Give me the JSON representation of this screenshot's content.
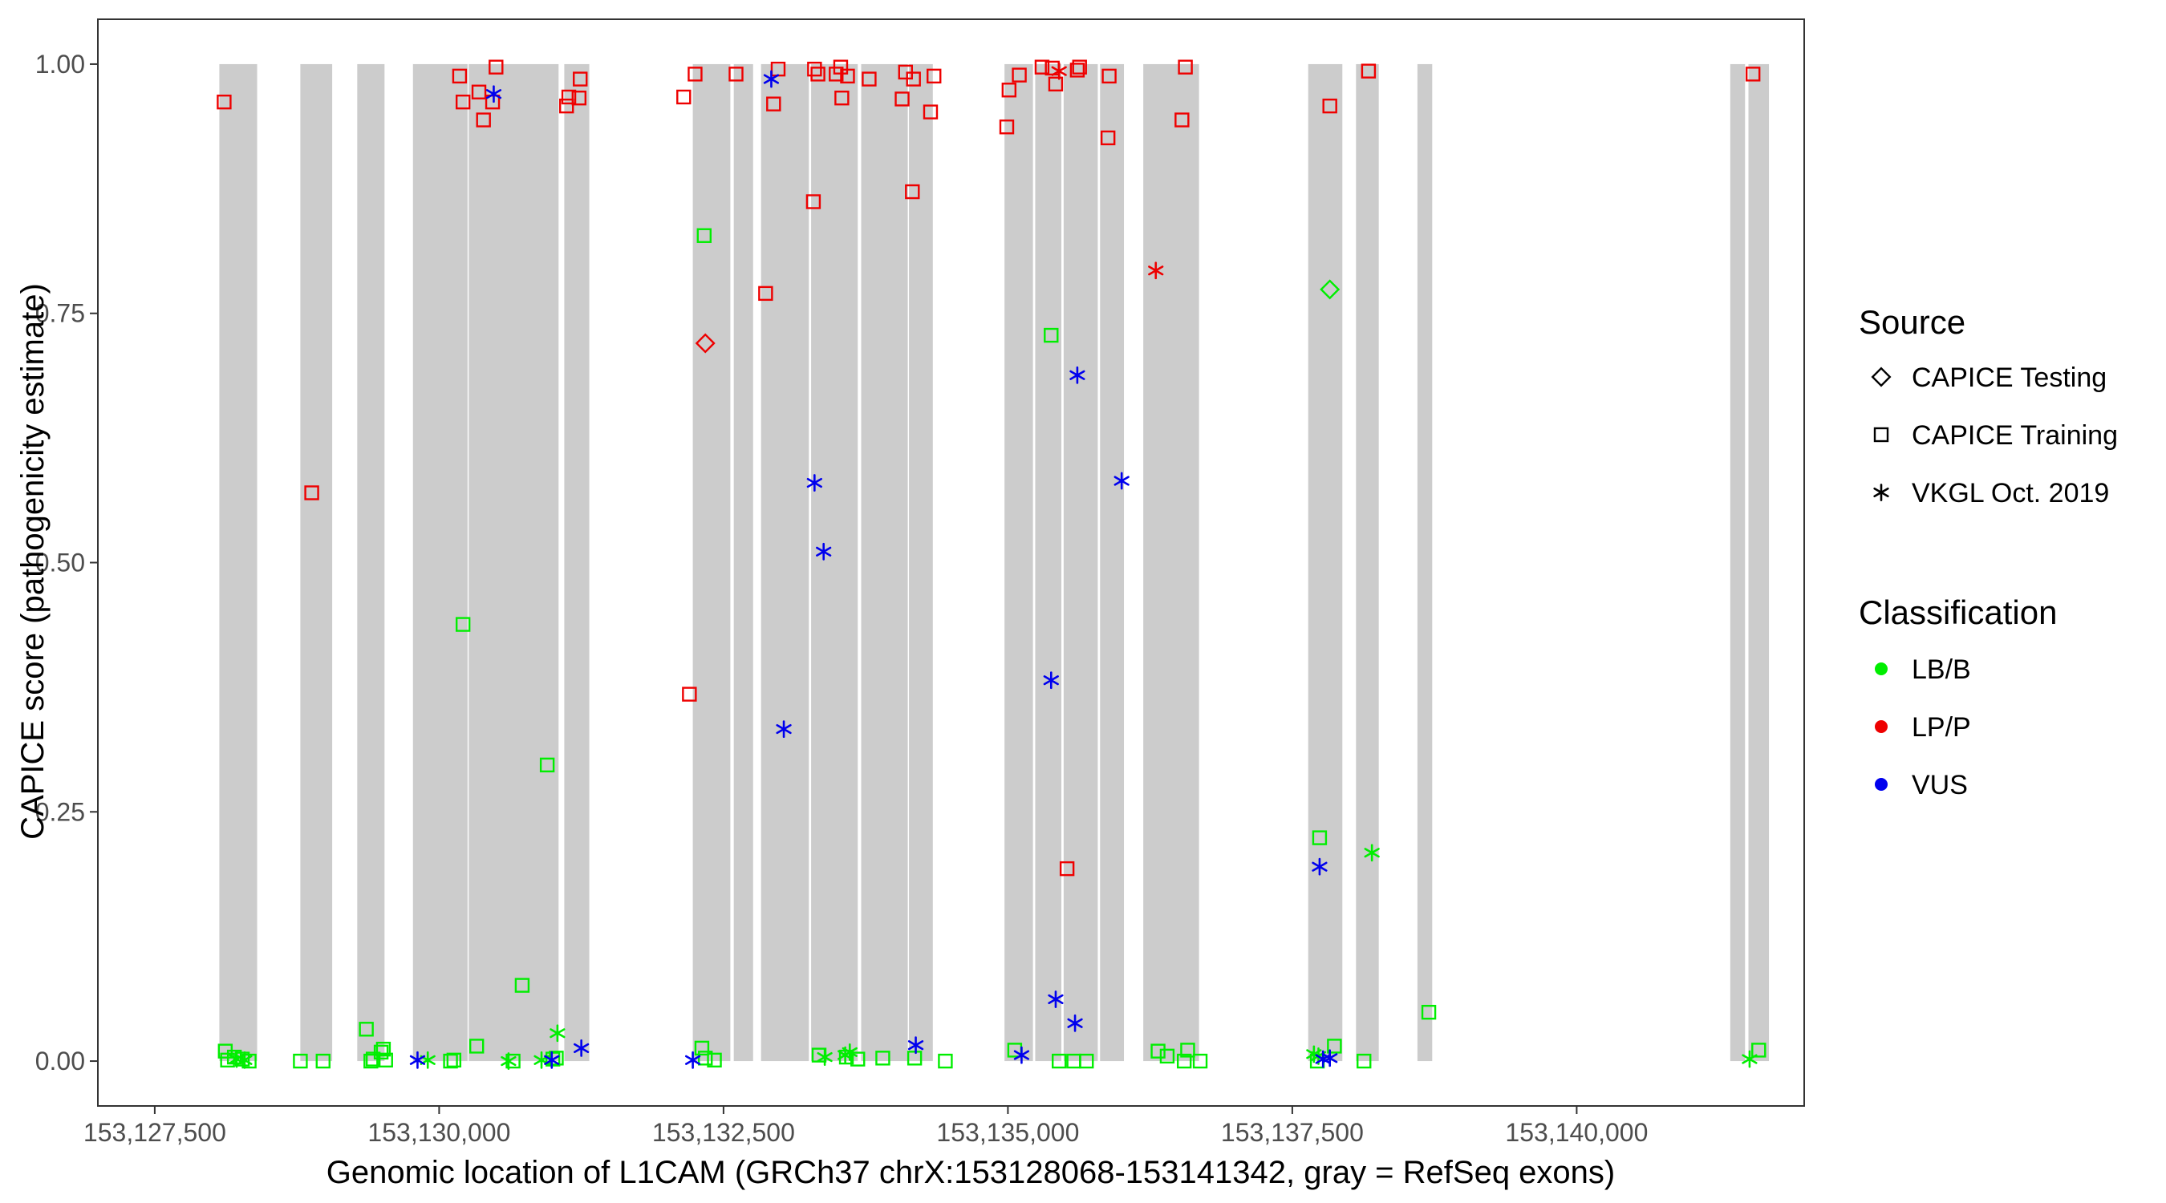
{
  "chart_data": {
    "type": "scatter",
    "xlabel": "Genomic location of L1CAM (GRCh37 chrX:153128068-153141342, gray = RefSeq exons)",
    "ylabel": "CAPICE score (pathogenicity estimate)",
    "xlim": [
      127000,
      142000
    ],
    "ylim": [
      -0.045,
      1.045
    ],
    "x_ticks": [
      127500,
      130000,
      132500,
      135000,
      137500,
      140000
    ],
    "x_tick_labels": [
      "153,127,500",
      "153,130,000",
      "153,132,500",
      "153,135,000",
      "153,137,500",
      "153,140,000"
    ],
    "y_ticks": [
      0,
      0.25,
      0.5,
      0.75,
      1
    ],
    "y_tick_labels": [
      "0.00",
      "0.25",
      "0.50",
      "0.75",
      "1.00"
    ],
    "x_offset_note_value": 153000000,
    "exons": [
      [
        128068,
        128400
      ],
      [
        128780,
        129060
      ],
      [
        129280,
        129520
      ],
      [
        129770,
        130250
      ],
      [
        130260,
        131050
      ],
      [
        131100,
        131320
      ],
      [
        132230,
        132560
      ],
      [
        132590,
        132760
      ],
      [
        132830,
        133250
      ],
      [
        133270,
        133680
      ],
      [
        133710,
        134120
      ],
      [
        134130,
        134340
      ],
      [
        134970,
        135220
      ],
      [
        135240,
        135470
      ],
      [
        135490,
        135790
      ],
      [
        135810,
        136020
      ],
      [
        136190,
        136680
      ],
      [
        137640,
        137940
      ],
      [
        138060,
        138260
      ],
      [
        138600,
        138730
      ],
      [
        141350,
        141480
      ],
      [
        141510,
        141690
      ]
    ],
    "legend": {
      "source_title": "Source",
      "source_items": [
        {
          "label": "CAPICE Testing",
          "shape": "diamond"
        },
        {
          "label": "CAPICE Training",
          "shape": "square"
        },
        {
          "label": "VKGL Oct. 2019",
          "shape": "asterisk"
        }
      ],
      "class_title": "Classification",
      "class_items": [
        {
          "label": "LB/B",
          "color": "#00ee00"
        },
        {
          "label": "LP/P",
          "color": "#ee0000"
        },
        {
          "label": "VUS",
          "color": "#0000ee"
        }
      ]
    },
    "colors": {
      "LB/B": "#00ee00",
      "LP/P": "#ee0000",
      "VUS": "#0000ee",
      "exon": "#cccccc"
    },
    "series": [
      {
        "source": "CAPICE Training",
        "classification": "LP/P",
        "points": [
          [
            128110,
            0.962
          ],
          [
            128880,
            0.57
          ],
          [
            130180,
            0.988
          ],
          [
            130210,
            0.962
          ],
          [
            130350,
            0.972
          ],
          [
            130390,
            0.944
          ],
          [
            130470,
            0.962
          ],
          [
            130500,
            0.997
          ],
          [
            131120,
            0.958
          ],
          [
            131140,
            0.967
          ],
          [
            131240,
            0.985
          ],
          [
            131230,
            0.966
          ],
          [
            132150,
            0.967
          ],
          [
            132200,
            0.368
          ],
          [
            132250,
            0.99
          ],
          [
            132610,
            0.99
          ],
          [
            132870,
            0.77
          ],
          [
            132940,
            0.96
          ],
          [
            132980,
            0.995
          ],
          [
            133290,
            0.862
          ],
          [
            133300,
            0.995
          ],
          [
            133330,
            0.99
          ],
          [
            133490,
            0.99
          ],
          [
            133530,
            0.997
          ],
          [
            133540,
            0.966
          ],
          [
            133590,
            0.988
          ],
          [
            133780,
            0.985
          ],
          [
            134070,
            0.965
          ],
          [
            134100,
            0.992
          ],
          [
            134160,
            0.872
          ],
          [
            134170,
            0.985
          ],
          [
            134320,
            0.952
          ],
          [
            134350,
            0.988
          ],
          [
            134990,
            0.937
          ],
          [
            135010,
            0.974
          ],
          [
            135100,
            0.989
          ],
          [
            135300,
            0.997
          ],
          [
            135390,
            0.996
          ],
          [
            135420,
            0.98
          ],
          [
            135520,
            0.193
          ],
          [
            135610,
            0.994
          ],
          [
            135630,
            0.997
          ],
          [
            135880,
            0.926
          ],
          [
            135890,
            0.988
          ],
          [
            136530,
            0.944
          ],
          [
            136560,
            0.997
          ],
          [
            137830,
            0.958
          ],
          [
            138170,
            0.993
          ],
          [
            141550,
            0.99
          ]
        ]
      },
      {
        "source": "CAPICE Training",
        "classification": "LB/B",
        "points": [
          [
            128120,
            0.01
          ],
          [
            128140,
            0.001
          ],
          [
            128200,
            0.004
          ],
          [
            128270,
            0.002
          ],
          [
            128330,
            0.0
          ],
          [
            128780,
            0.0
          ],
          [
            128980,
            0.0
          ],
          [
            129360,
            0.032
          ],
          [
            129400,
            0.0
          ],
          [
            129420,
            0.002
          ],
          [
            129490,
            0.009
          ],
          [
            129510,
            0.012
          ],
          [
            129530,
            0.001
          ],
          [
            130100,
            0.0
          ],
          [
            130130,
            0.001
          ],
          [
            130210,
            0.438
          ],
          [
            130330,
            0.015
          ],
          [
            130650,
            0.0
          ],
          [
            130730,
            0.076
          ],
          [
            130950,
            0.297
          ],
          [
            131000,
            0.002
          ],
          [
            131030,
            0.003
          ],
          [
            132330,
            0.828
          ],
          [
            132310,
            0.013
          ],
          [
            132340,
            0.003
          ],
          [
            132420,
            0.001
          ],
          [
            133340,
            0.006
          ],
          [
            133580,
            0.004
          ],
          [
            133680,
            0.002
          ],
          [
            133900,
            0.003
          ],
          [
            134180,
            0.003
          ],
          [
            134450,
            0.0
          ],
          [
            135060,
            0.011
          ],
          [
            135380,
            0.728
          ],
          [
            135450,
            0.0
          ],
          [
            135580,
            0.0
          ],
          [
            135690,
            0.0
          ],
          [
            136320,
            0.01
          ],
          [
            136400,
            0.005
          ],
          [
            136550,
            0.0
          ],
          [
            136580,
            0.011
          ],
          [
            136690,
            0.0
          ],
          [
            137720,
            0.0
          ],
          [
            137740,
            0.224
          ],
          [
            137870,
            0.015
          ],
          [
            138130,
            0.0
          ],
          [
            138700,
            0.049
          ],
          [
            141600,
            0.011
          ]
        ]
      },
      {
        "source": "CAPICE Testing",
        "classification": "LP/P",
        "points": [
          [
            132340,
            0.72
          ]
        ]
      },
      {
        "source": "CAPICE Testing",
        "classification": "LB/B",
        "points": [
          [
            137830,
            0.774
          ]
        ]
      },
      {
        "source": "VKGL Oct. 2019",
        "classification": "LB/B",
        "points": [
          [
            128220,
            0.002
          ],
          [
            128290,
            0.001
          ],
          [
            129900,
            0.001
          ],
          [
            130610,
            0.0
          ],
          [
            130900,
            0.001
          ],
          [
            131040,
            0.028
          ],
          [
            133390,
            0.004
          ],
          [
            133570,
            0.006
          ],
          [
            133610,
            0.009
          ],
          [
            137690,
            0.007
          ],
          [
            137730,
            0.005
          ],
          [
            138200,
            0.209
          ],
          [
            141520,
            0.002
          ]
        ]
      },
      {
        "source": "VKGL Oct. 2019",
        "classification": "LP/P",
        "points": [
          [
            135450,
            0.993
          ],
          [
            136300,
            0.793
          ]
        ]
      },
      {
        "source": "VKGL Oct. 2019",
        "classification": "VUS",
        "points": [
          [
            129810,
            0.001
          ],
          [
            130480,
            0.97
          ],
          [
            130990,
            0.001
          ],
          [
            131250,
            0.013
          ],
          [
            132230,
            0.001
          ],
          [
            132920,
            0.985
          ],
          [
            133030,
            0.333
          ],
          [
            133300,
            0.58
          ],
          [
            133380,
            0.511
          ],
          [
            134190,
            0.016
          ],
          [
            135120,
            0.006
          ],
          [
            135380,
            0.382
          ],
          [
            135420,
            0.062
          ],
          [
            135610,
            0.688
          ],
          [
            135590,
            0.038
          ],
          [
            136000,
            0.582
          ],
          [
            137740,
            0.195
          ],
          [
            137770,
            0.002
          ],
          [
            137830,
            0.003
          ]
        ]
      }
    ]
  }
}
